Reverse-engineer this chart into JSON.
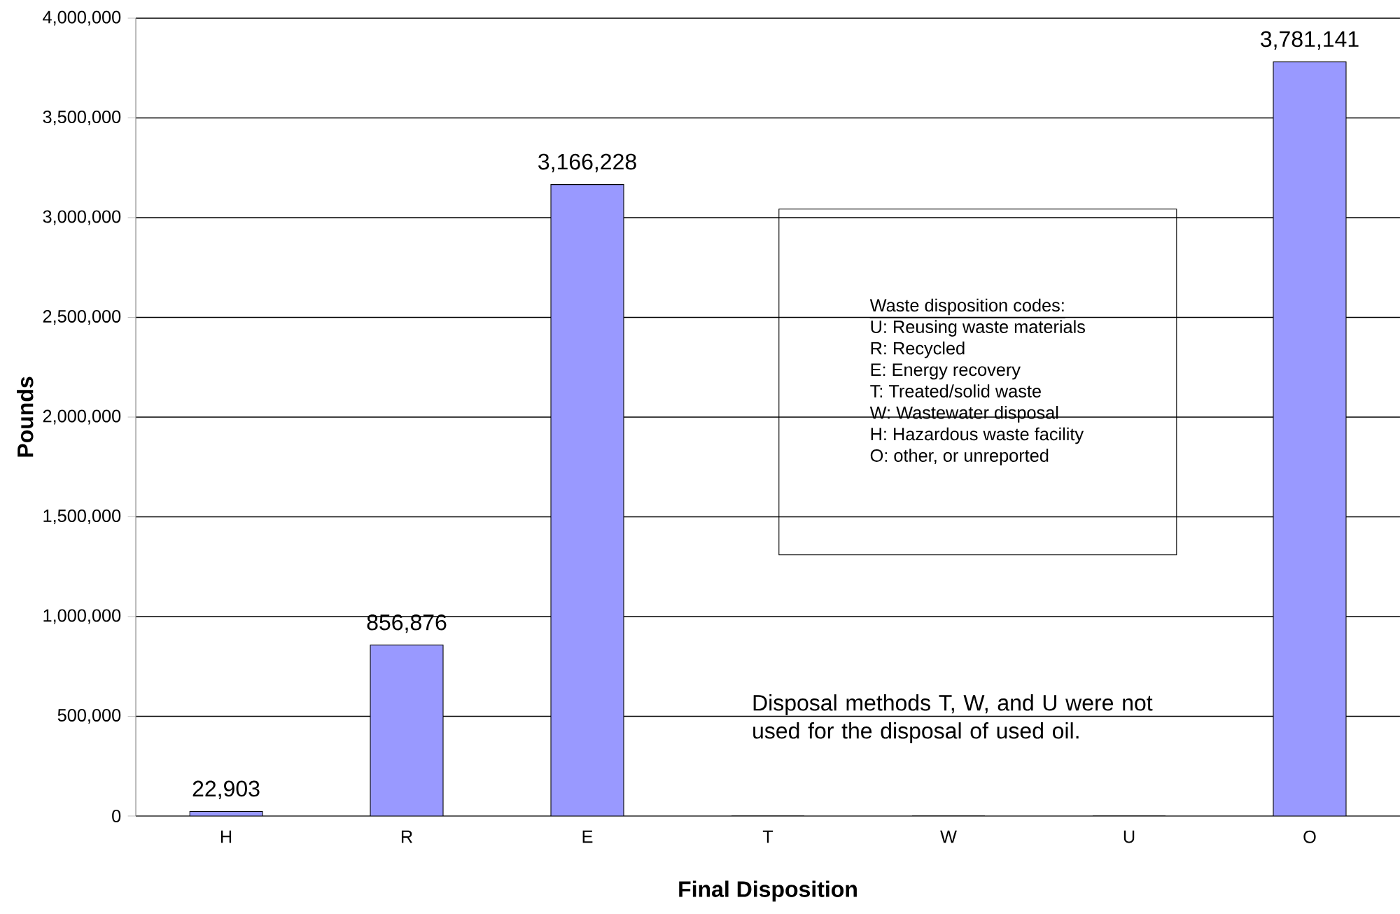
{
  "chart_data": {
    "type": "bar",
    "xlabel": "Final Disposition",
    "ylabel": "Pounds",
    "categories": [
      "H",
      "R",
      "E",
      "T",
      "W",
      "U",
      "O"
    ],
    "values": [
      22903,
      856876,
      3166228,
      0,
      0,
      0,
      3781141
    ],
    "value_labels": [
      "22,903",
      "856,876",
      "3,166,228",
      null,
      null,
      null,
      "3,781,141"
    ],
    "color": "#9999ff",
    "ylim": [
      0,
      4000000
    ],
    "yticks": [
      0,
      {
        "value": 500000,
        "label": "500,000"
      },
      {
        "value": 1000000,
        "label": "1,000,000"
      },
      {
        "value": 1500000,
        "label": "1,500,000"
      },
      {
        "value": 2000000,
        "label": "2,000,000"
      },
      {
        "value": 2500000,
        "label": "2,500,000"
      },
      {
        "value": 3000000,
        "label": "3,000,000"
      },
      {
        "value": 3500000,
        "label": "3,500,000"
      },
      {
        "value": 4000000,
        "label": "4,000,000"
      }
    ],
    "grid": "y",
    "annotations": [
      "Waste disposition codes:",
      "U: Reusing waste materials",
      "R: Recycled",
      "E: Energy recovery",
      "T: Treated/solid waste",
      "W: Wastewater disposal",
      "H: Hazardous waste facility",
      "O: other, or unreported",
      "Disposal methods T, W, and U were not used for the disposal of used oil."
    ]
  }
}
